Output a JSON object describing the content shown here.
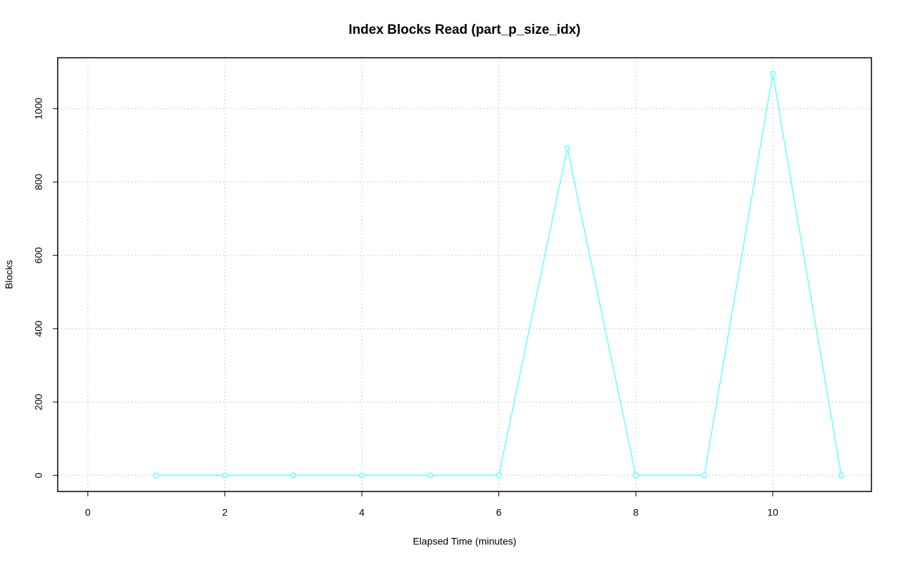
{
  "chart_data": {
    "type": "line",
    "title": "Index Blocks Read (part_p_size_idx)",
    "x_label": "Elapsed Time (minutes)",
    "y_label": "Blocks",
    "x": [
      1,
      2,
      3,
      4,
      5,
      6,
      7,
      8,
      9,
      10,
      11
    ],
    "series": [
      {
        "name": "Blocks",
        "color": "#66ffff",
        "values": [
          0,
          0,
          0,
          0,
          0,
          0,
          892,
          0,
          0,
          1095,
          0
        ]
      }
    ],
    "xlim": [
      -0.44,
      11.44
    ],
    "ylim": [
      -43.8,
      1138.8
    ],
    "xticks": [
      0,
      2,
      4,
      6,
      8,
      10
    ],
    "yticks": [
      0,
      200,
      400,
      600,
      800,
      1000
    ],
    "grid": true
  }
}
